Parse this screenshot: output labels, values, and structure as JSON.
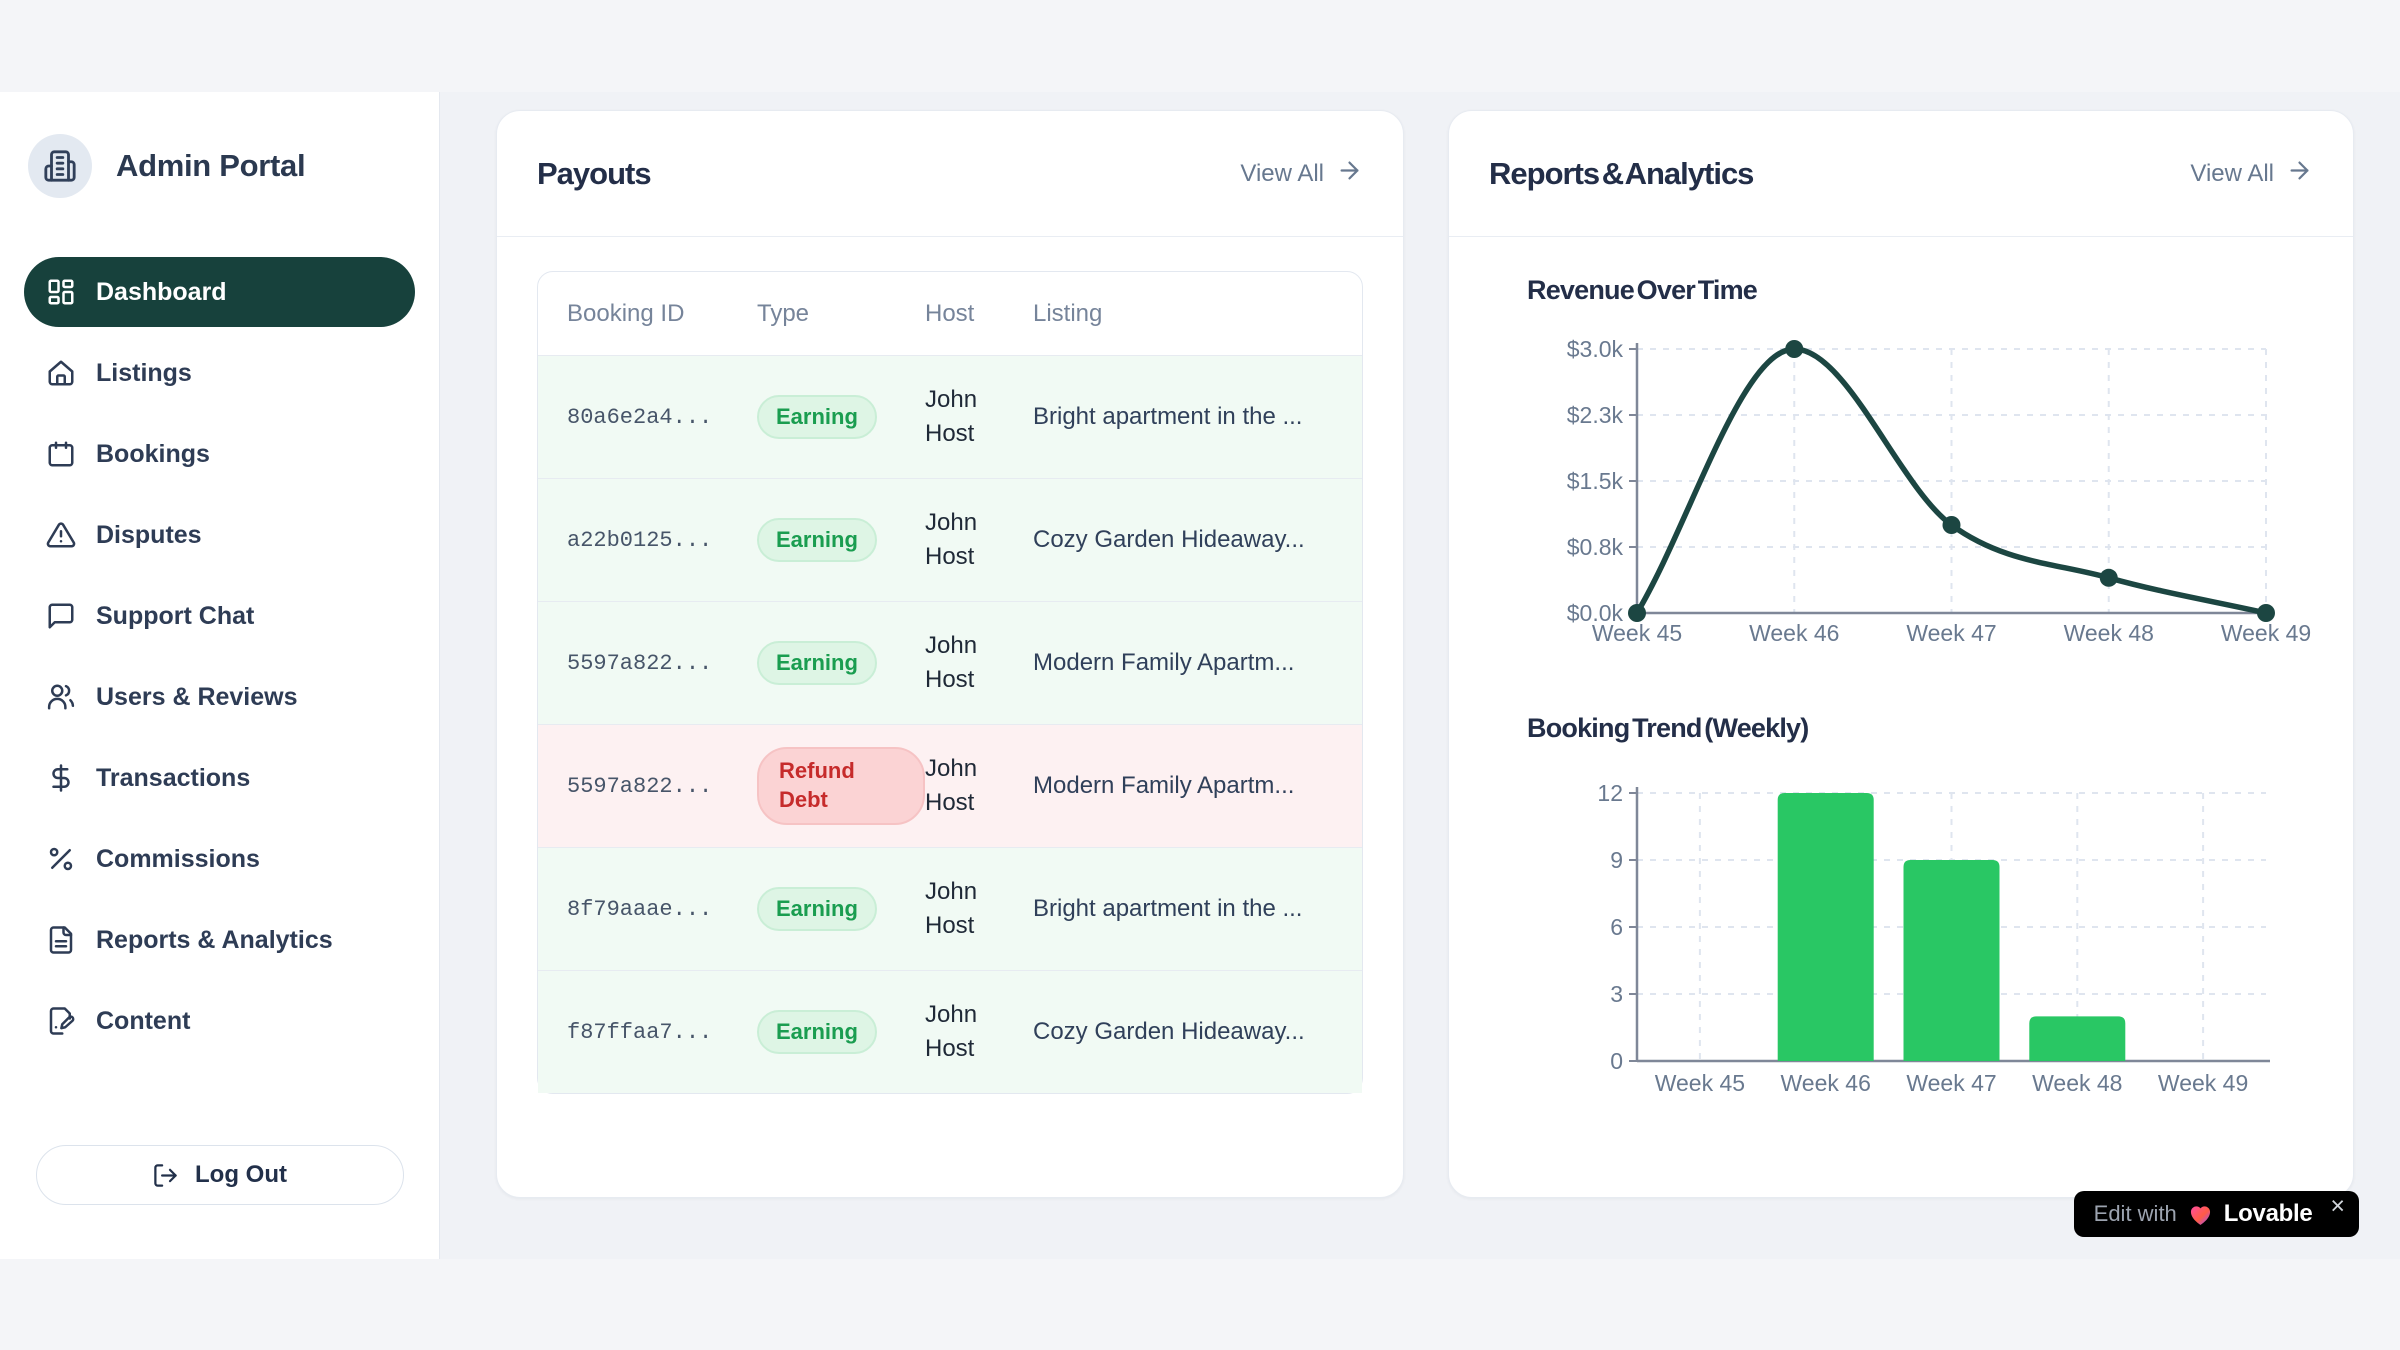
{
  "app_title": "Admin Portal",
  "sidebar": {
    "items": [
      {
        "label": "Dashboard",
        "icon": "dashboard-icon",
        "active": true
      },
      {
        "label": "Listings",
        "icon": "home-icon",
        "active": false
      },
      {
        "label": "Bookings",
        "icon": "calendar-icon",
        "active": false
      },
      {
        "label": "Disputes",
        "icon": "alert-triangle-icon",
        "active": false
      },
      {
        "label": "Support Chat",
        "icon": "message-square-icon",
        "active": false
      },
      {
        "label": "Users & Reviews",
        "icon": "users-icon",
        "active": false
      },
      {
        "label": "Transactions",
        "icon": "dollar-sign-icon",
        "active": false
      },
      {
        "label": "Commissions",
        "icon": "percent-icon",
        "active": false
      },
      {
        "label": "Reports & Analytics",
        "icon": "file-text-icon",
        "active": false
      },
      {
        "label": "Content",
        "icon": "file-pen-icon",
        "active": false
      }
    ],
    "logout_label": "Log Out"
  },
  "payouts": {
    "title": "Payouts",
    "view_all_label": "View All",
    "columns": [
      "Booking ID",
      "Type",
      "Host",
      "Listing"
    ],
    "rows": [
      {
        "booking_id": "80a6e2a4...",
        "type": "Earning",
        "status": "earning",
        "host": "John Host",
        "listing": "Bright apartment in the ..."
      },
      {
        "booking_id": "a22b0125...",
        "type": "Earning",
        "status": "earning",
        "host": "John Host",
        "listing": "Cozy Garden Hideaway..."
      },
      {
        "booking_id": "5597a822...",
        "type": "Earning",
        "status": "earning",
        "host": "John Host",
        "listing": "Modern Family Apartm..."
      },
      {
        "booking_id": "5597a822...",
        "type": "Refund Debt",
        "status": "refund",
        "host": "John Host",
        "listing": "Modern Family Apartm..."
      },
      {
        "booking_id": "8f79aaae...",
        "type": "Earning",
        "status": "earning",
        "host": "John Host",
        "listing": "Bright apartment in the ..."
      },
      {
        "booking_id": "f87ffaa7...",
        "type": "Earning",
        "status": "earning",
        "host": "John Host",
        "listing": "Cozy Garden Hideaway..."
      }
    ]
  },
  "reports": {
    "title": "Reports & Analytics",
    "view_all_label": "View All"
  },
  "chart_data": [
    {
      "type": "line",
      "title": "Revenue Over Time",
      "x": [
        "Week 45",
        "Week 46",
        "Week 47",
        "Week 48",
        "Week 49"
      ],
      "values": [
        0,
        3000,
        1000,
        400,
        0
      ],
      "y_ticks": [
        {
          "value": 0,
          "label": "$0.0k"
        },
        {
          "value": 750,
          "label": "$0.8k"
        },
        {
          "value": 1500,
          "label": "$1.5k"
        },
        {
          "value": 2250,
          "label": "$2.3k"
        },
        {
          "value": 3000,
          "label": "$3.0k"
        }
      ],
      "ylim": [
        0,
        3000
      ],
      "xlabel": "",
      "ylabel": "",
      "grid": true,
      "line_color": "#1c4642"
    },
    {
      "type": "bar",
      "title": "Booking Trend (Weekly)",
      "categories": [
        "Week 45",
        "Week 46",
        "Week 47",
        "Week 48",
        "Week 49"
      ],
      "values": [
        0,
        12,
        9,
        2,
        0
      ],
      "y_ticks": [
        0,
        3,
        6,
        9,
        12
      ],
      "ylim": [
        0,
        12
      ],
      "xlabel": "",
      "ylabel": "",
      "grid": true,
      "bar_color": "#29c764"
    }
  ],
  "lovable_badge": {
    "prefix": "Edit with",
    "brand": "Lovable",
    "close": "×"
  },
  "colors": {
    "brand_teal": "#17413c",
    "accent_green": "#29c764",
    "badge_green_bg": "#def5e5",
    "badge_green_text": "#1a9d50",
    "badge_red_bg": "#fbd3d4",
    "badge_red_text": "#c62b2b",
    "row_green_bg": "#f1faf4",
    "row_red_bg": "#fdf1f2",
    "page_bg": "#f4f5f8",
    "content_bg": "#f0f2f6"
  }
}
